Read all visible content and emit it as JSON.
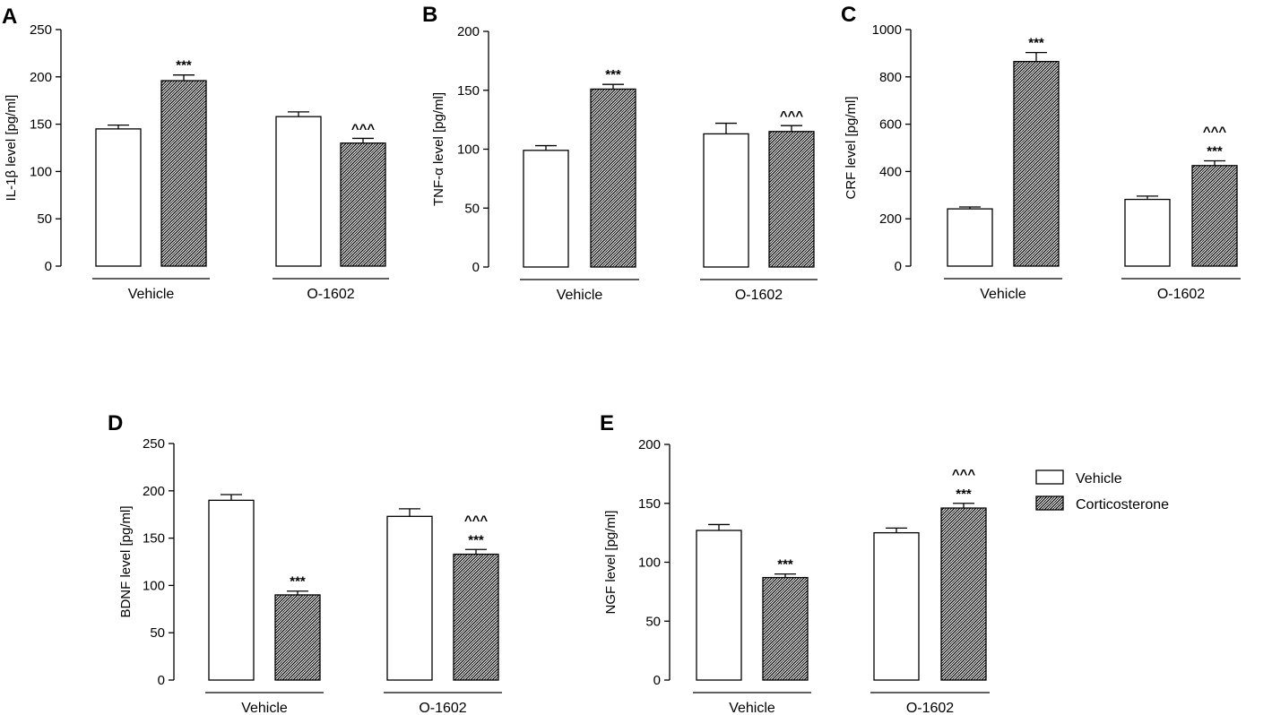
{
  "legend": {
    "items": [
      {
        "label": "Vehicle",
        "pattern": "plain"
      },
      {
        "label": "Corticosterone",
        "pattern": "hatched"
      }
    ]
  },
  "colors": {
    "bar_stroke": "#000000",
    "plain_fill": "#ffffff",
    "hatch": "#000000"
  },
  "chart_data": [
    {
      "panel": "A",
      "type": "bar",
      "ylabel": "IL-1β level [pg/ml]",
      "ylim": [
        0,
        250
      ],
      "yticks": [
        0,
        50,
        100,
        150,
        200,
        250
      ],
      "categories": [
        "Vehicle",
        "O-1602"
      ],
      "series": [
        {
          "name": "Vehicle",
          "values": [
            145,
            158
          ],
          "errors": [
            4,
            5
          ]
        },
        {
          "name": "Corticosterone",
          "values": [
            196,
            130
          ],
          "errors": [
            6,
            5
          ]
        }
      ],
      "annotations": [
        {
          "category": 0,
          "series": 1,
          "lines": [
            "***"
          ]
        },
        {
          "category": 1,
          "series": 1,
          "lines": [
            "^^^"
          ]
        }
      ]
    },
    {
      "panel": "B",
      "type": "bar",
      "ylabel": "TNF-α level [pg/ml]",
      "ylim": [
        0,
        200
      ],
      "yticks": [
        0,
        50,
        100,
        150,
        200
      ],
      "categories": [
        "Vehicle",
        "O-1602"
      ],
      "series": [
        {
          "name": "Vehicle",
          "values": [
            99,
            113
          ],
          "errors": [
            4,
            9
          ]
        },
        {
          "name": "Corticosterone",
          "values": [
            151,
            115
          ],
          "errors": [
            4,
            5
          ]
        }
      ],
      "annotations": [
        {
          "category": 0,
          "series": 1,
          "lines": [
            "***"
          ]
        },
        {
          "category": 1,
          "series": 1,
          "lines": [
            "^^^"
          ]
        }
      ]
    },
    {
      "panel": "C",
      "type": "bar",
      "ylabel": "CRF level [pg/ml]",
      "ylim": [
        0,
        1000
      ],
      "yticks": [
        0,
        200,
        400,
        600,
        800,
        1000
      ],
      "categories": [
        "Vehicle",
        "O-1602"
      ],
      "series": [
        {
          "name": "Vehicle",
          "values": [
            242,
            282
          ],
          "errors": [
            8,
            14
          ]
        },
        {
          "name": "Corticosterone",
          "values": [
            865,
            425
          ],
          "errors": [
            38,
            20
          ]
        }
      ],
      "annotations": [
        {
          "category": 0,
          "series": 1,
          "lines": [
            "***"
          ]
        },
        {
          "category": 1,
          "series": 1,
          "lines": [
            "^^^",
            "***"
          ]
        }
      ]
    },
    {
      "panel": "D",
      "type": "bar",
      "ylabel": "BDNF level [pg/ml]",
      "ylim": [
        0,
        250
      ],
      "yticks": [
        0,
        50,
        100,
        150,
        200,
        250
      ],
      "categories": [
        "Vehicle",
        "O-1602"
      ],
      "series": [
        {
          "name": "Vehicle",
          "values": [
            190,
            173
          ],
          "errors": [
            6,
            8
          ]
        },
        {
          "name": "Corticosterone",
          "values": [
            90,
            133
          ],
          "errors": [
            4,
            5
          ]
        }
      ],
      "annotations": [
        {
          "category": 0,
          "series": 1,
          "lines": [
            "***"
          ]
        },
        {
          "category": 1,
          "series": 1,
          "lines": [
            "^^^",
            "***"
          ]
        }
      ]
    },
    {
      "panel": "E",
      "type": "bar",
      "ylabel": "NGF level [pg/ml]",
      "ylim": [
        0,
        200
      ],
      "yticks": [
        0,
        50,
        100,
        150,
        200
      ],
      "categories": [
        "Vehicle",
        "O-1602"
      ],
      "series": [
        {
          "name": "Vehicle",
          "values": [
            127,
            125
          ],
          "errors": [
            5,
            4
          ]
        },
        {
          "name": "Corticosterone",
          "values": [
            87,
            146
          ],
          "errors": [
            3,
            4
          ]
        }
      ],
      "annotations": [
        {
          "category": 0,
          "series": 1,
          "lines": [
            "***"
          ]
        },
        {
          "category": 1,
          "series": 1,
          "lines": [
            "^^^",
            "***"
          ]
        }
      ]
    }
  ]
}
